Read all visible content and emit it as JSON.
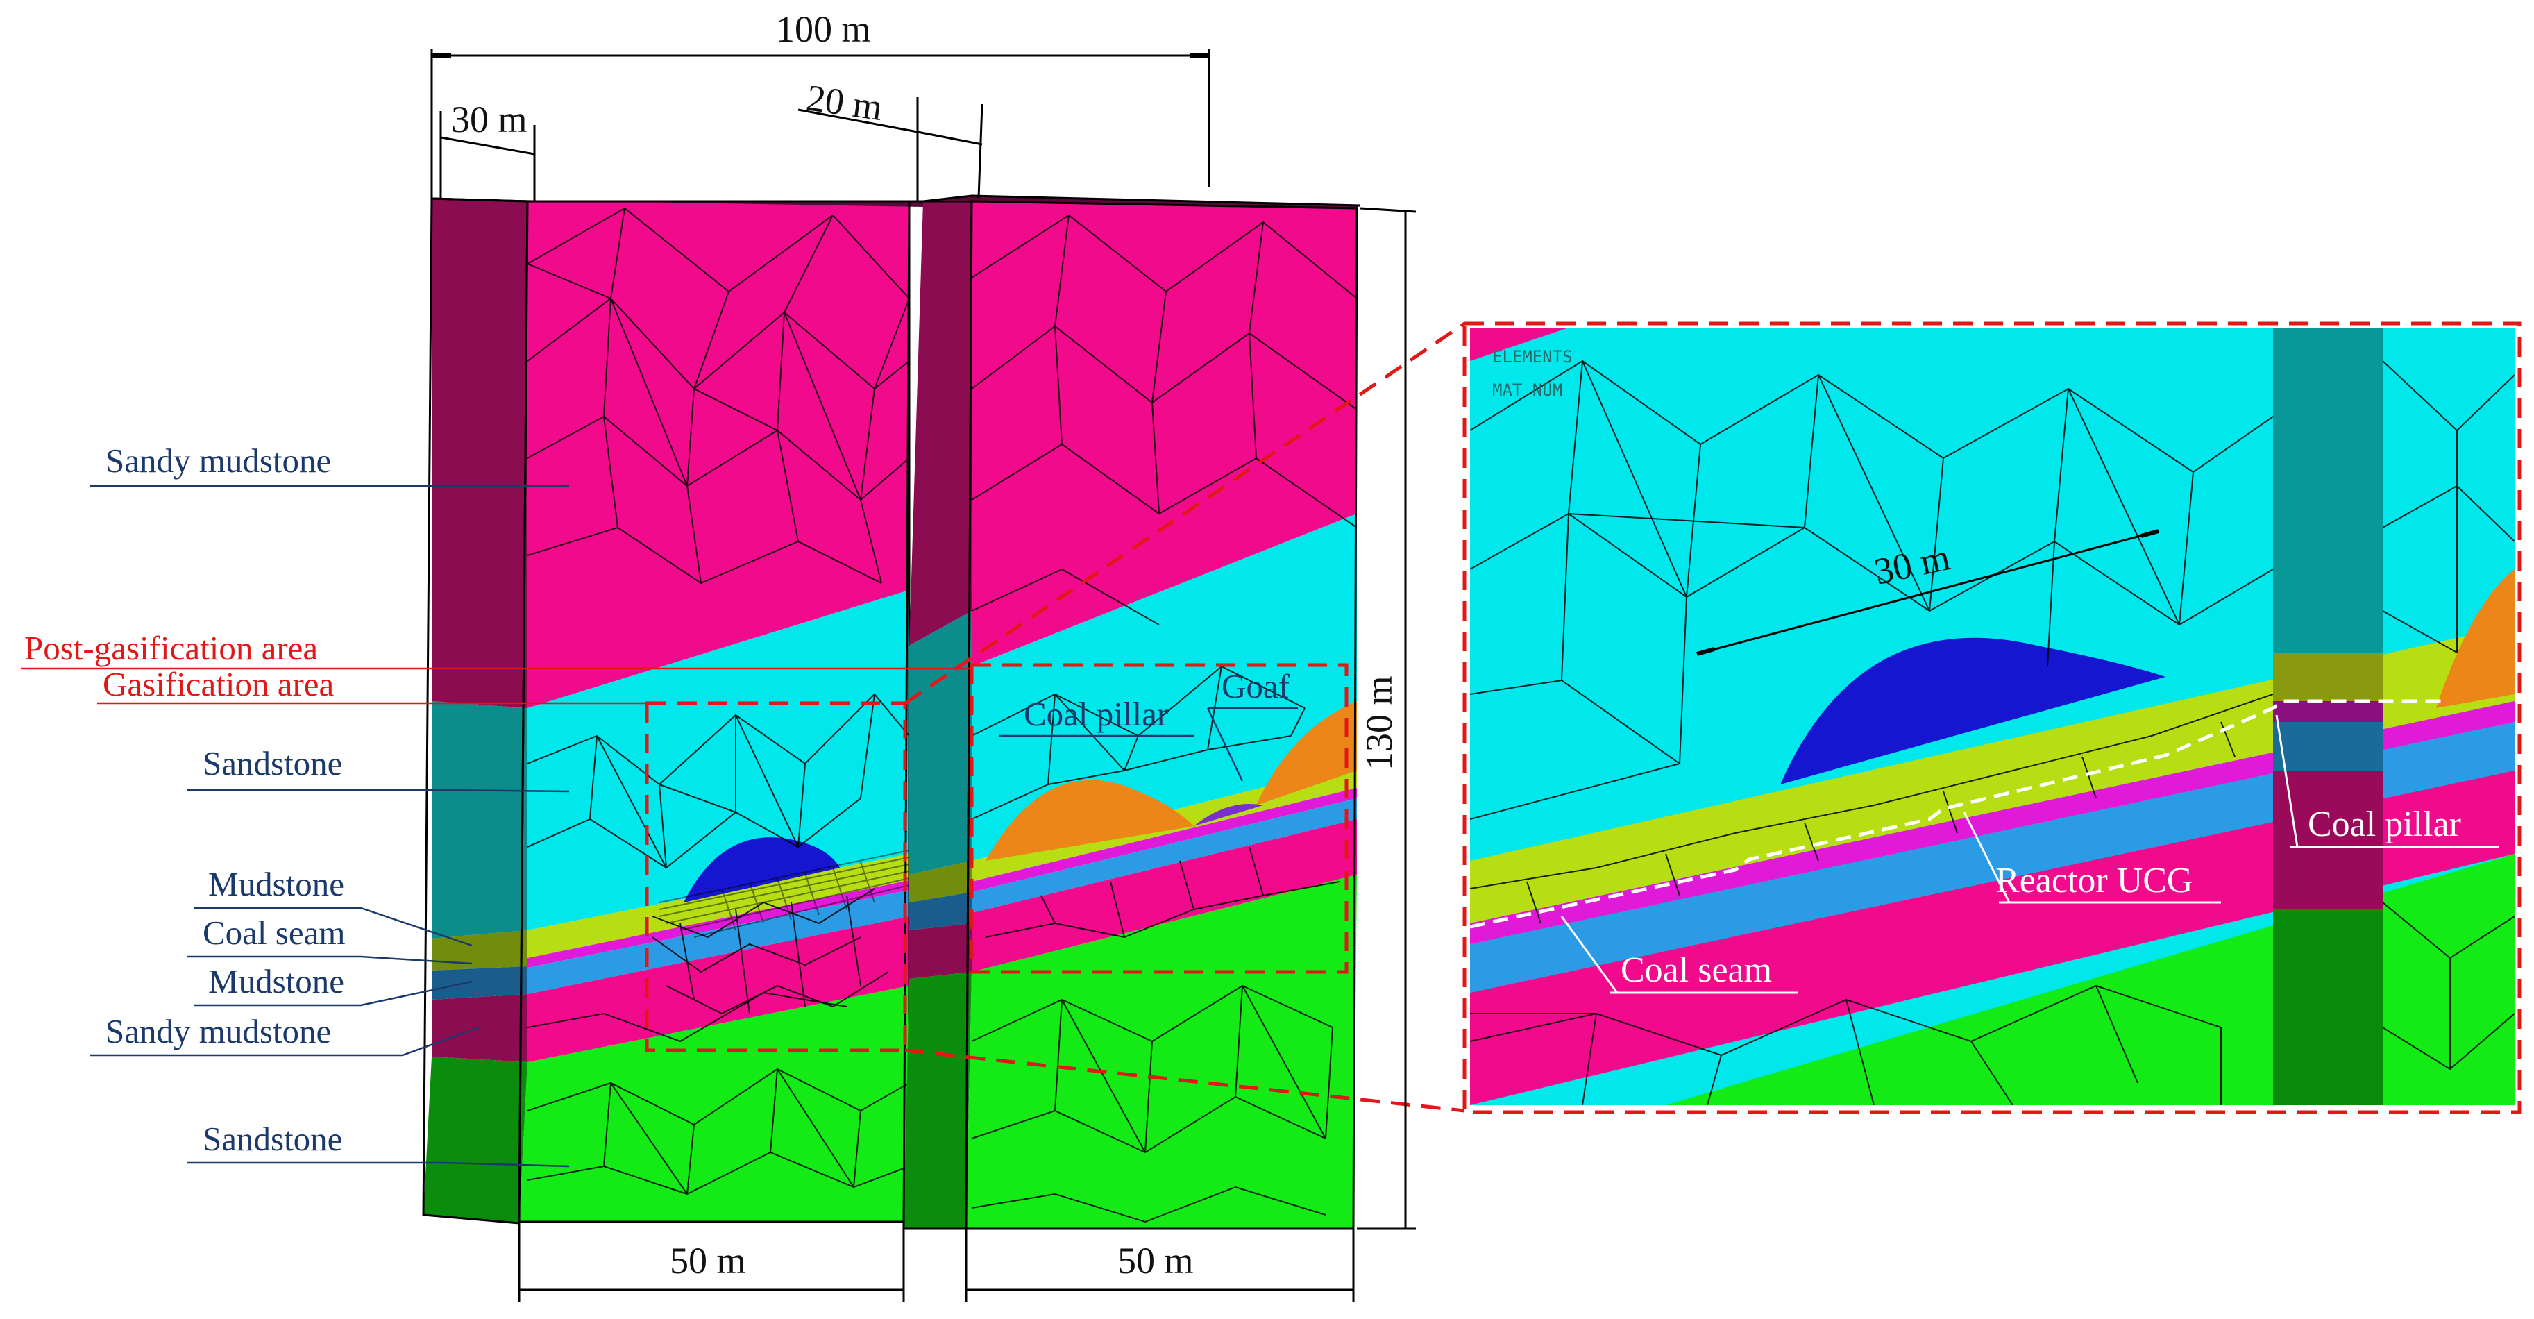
{
  "colors": {
    "sandy_mudstone": "#f20a8c",
    "sandstone_upper": "#00e8ec",
    "mudstone": "#b7dd13",
    "coal_seam": "#e01ad8",
    "mudstone_lower": "#2b9be6",
    "sandstone_lower": "#14ea16",
    "goaf": "#ec8618",
    "cavity": "#1616d0",
    "dashed_red": "#e01818"
  },
  "dimensions": {
    "total_width": "100 m",
    "pillar_offset": "30 m",
    "pillar_width": "20 m",
    "height": "130 m",
    "left_bottom": "50 m",
    "right_bottom": "50 m"
  },
  "left_labels": {
    "sandy_mudstone_top": "Sandy mudstone",
    "post_gasification": "Post-gasification area",
    "gasification": "Gasification area",
    "sandstone_mid": "Sandstone",
    "mudstone_1": "Mudstone",
    "coal_seam": "Coal seam",
    "mudstone_2": "Mudstone",
    "sandy_mudstone_bottom": "Sandy mudstone",
    "sandstone_bottom": "Sandstone"
  },
  "model_labels": {
    "coal_pillar": "Coal pillar",
    "goaf": "Goaf"
  },
  "zoom": {
    "header_line1": "ELEMENTS",
    "header_line2": "MAT  NUM",
    "dim_30m": "30 m",
    "coal_pillar": "Coal pillar",
    "reactor": "Reactor UCG",
    "coal_seam": "Coal seam"
  }
}
